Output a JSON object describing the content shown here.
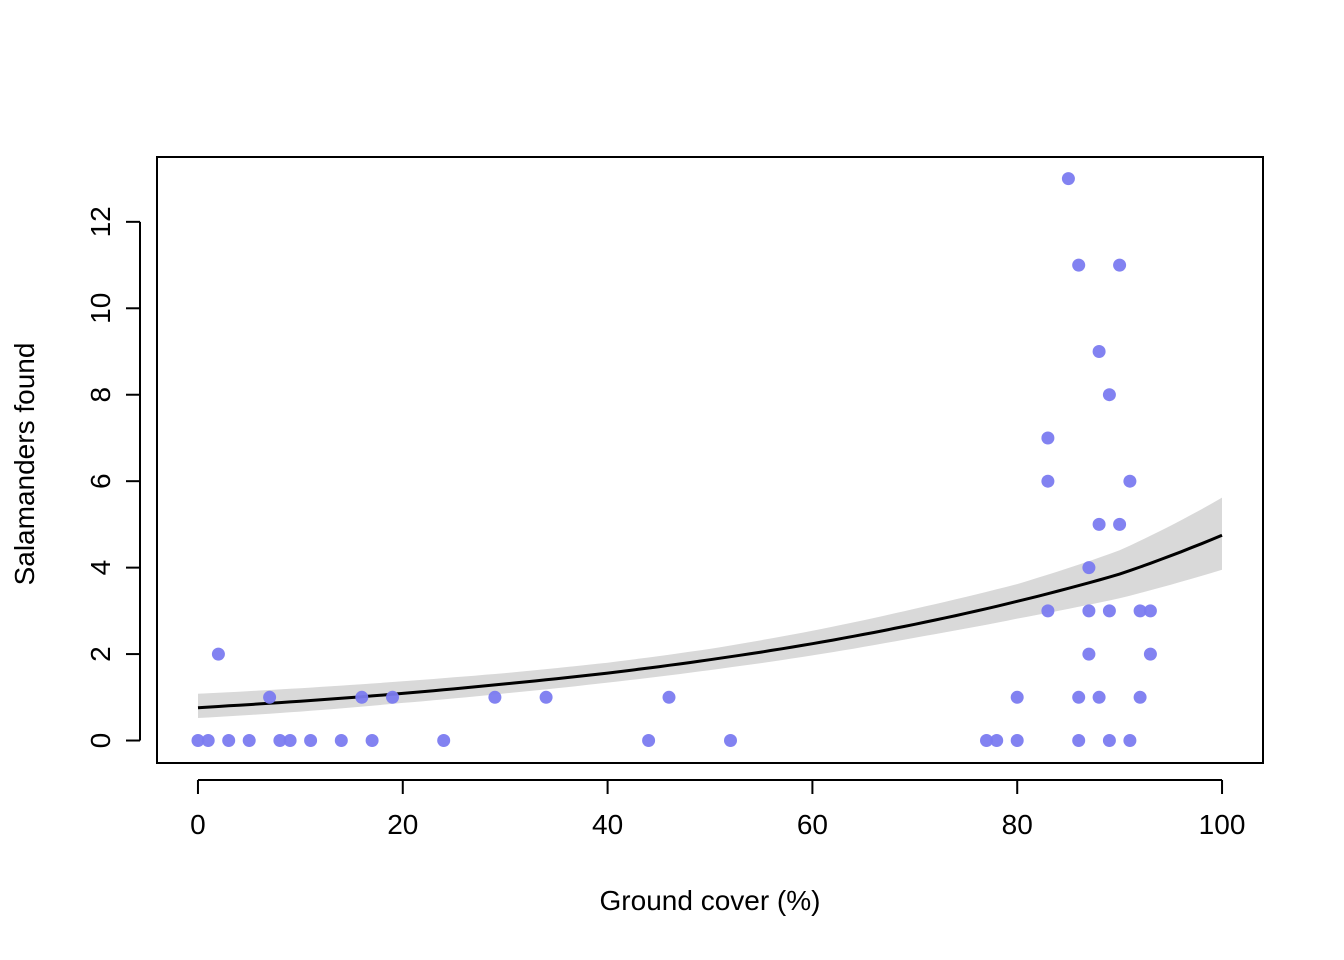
{
  "chart_data": {
    "type": "scatter",
    "title": "",
    "xlabel": "Ground cover (%)",
    "ylabel": "Salamanders found",
    "xlim": [
      -4,
      104
    ],
    "ylim": [
      -0.52,
      13.5
    ],
    "xticks": [
      0,
      20,
      40,
      60,
      80,
      100
    ],
    "yticks": [
      0,
      2,
      4,
      6,
      8,
      10,
      12
    ],
    "grid": false,
    "legend": "none",
    "colors": {
      "points": "#7b7bf0",
      "fit_line": "#000000",
      "confidence_band": "#d9d9d9",
      "frame": "#000000"
    },
    "points": [
      {
        "x": 0,
        "y": 0
      },
      {
        "x": 1,
        "y": 0
      },
      {
        "x": 2,
        "y": 2
      },
      {
        "x": 3,
        "y": 0
      },
      {
        "x": 5,
        "y": 0
      },
      {
        "x": 7,
        "y": 1
      },
      {
        "x": 8,
        "y": 0
      },
      {
        "x": 9,
        "y": 0
      },
      {
        "x": 11,
        "y": 0
      },
      {
        "x": 14,
        "y": 0
      },
      {
        "x": 16,
        "y": 1
      },
      {
        "x": 17,
        "y": 0
      },
      {
        "x": 19,
        "y": 1
      },
      {
        "x": 24,
        "y": 0
      },
      {
        "x": 29,
        "y": 1
      },
      {
        "x": 34,
        "y": 1
      },
      {
        "x": 44,
        "y": 0
      },
      {
        "x": 46,
        "y": 1
      },
      {
        "x": 52,
        "y": 0
      },
      {
        "x": 77,
        "y": 0
      },
      {
        "x": 78,
        "y": 0
      },
      {
        "x": 80,
        "y": 0
      },
      {
        "x": 80,
        "y": 1
      },
      {
        "x": 83,
        "y": 7
      },
      {
        "x": 83,
        "y": 6
      },
      {
        "x": 83,
        "y": 3
      },
      {
        "x": 85,
        "y": 13
      },
      {
        "x": 86,
        "y": 11
      },
      {
        "x": 86,
        "y": 1
      },
      {
        "x": 86,
        "y": 0
      },
      {
        "x": 87,
        "y": 4
      },
      {
        "x": 87,
        "y": 3
      },
      {
        "x": 87,
        "y": 2
      },
      {
        "x": 88,
        "y": 9
      },
      {
        "x": 88,
        "y": 5
      },
      {
        "x": 88,
        "y": 1
      },
      {
        "x": 89,
        "y": 8
      },
      {
        "x": 89,
        "y": 3
      },
      {
        "x": 89,
        "y": 0
      },
      {
        "x": 90,
        "y": 11
      },
      {
        "x": 90,
        "y": 5
      },
      {
        "x": 91,
        "y": 6
      },
      {
        "x": 91,
        "y": 0
      },
      {
        "x": 92,
        "y": 3
      },
      {
        "x": 92,
        "y": 1
      },
      {
        "x": 93,
        "y": 3
      },
      {
        "x": 93,
        "y": 2
      }
    ],
    "fit": {
      "model": "exponential",
      "x": [
        0,
        10,
        20,
        30,
        40,
        50,
        60,
        70,
        80,
        90,
        100
      ],
      "y": [
        0.76,
        0.91,
        1.09,
        1.31,
        1.56,
        1.87,
        2.24,
        2.69,
        3.22,
        3.85,
        4.75
      ],
      "lower": [
        0.52,
        0.67,
        0.87,
        1.09,
        1.34,
        1.63,
        1.97,
        2.38,
        2.82,
        3.29,
        3.95
      ],
      "upper": [
        1.08,
        1.21,
        1.37,
        1.56,
        1.8,
        2.12,
        2.54,
        3.05,
        3.62,
        4.4,
        5.62
      ]
    }
  }
}
